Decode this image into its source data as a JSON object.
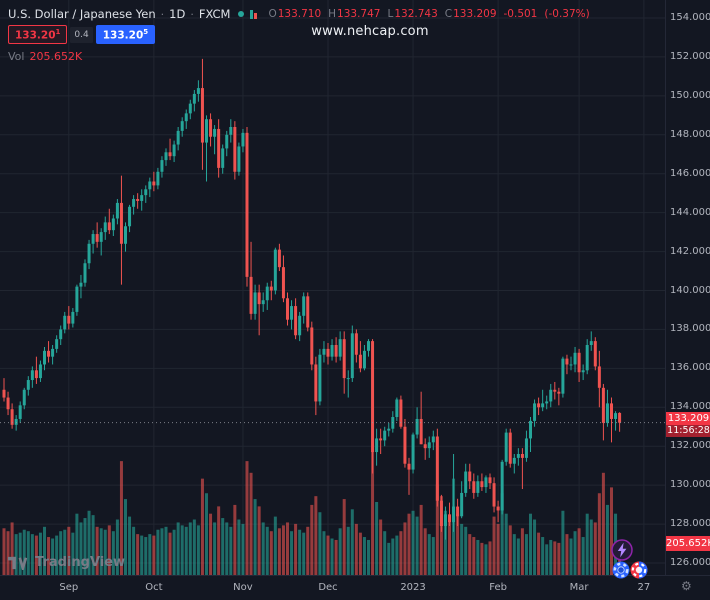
{
  "header": {
    "symbol": "U.S. Dollar / Japanese Yen",
    "separator": "·",
    "timeframe": "1D",
    "exchange": "FXCM",
    "ohlc": {
      "o_label": "O",
      "o": "133.710",
      "h_label": "H",
      "h": "133.747",
      "l_label": "L",
      "l": "132.743",
      "c_label": "C",
      "c": "133.209",
      "change": "-0.501",
      "change_pct": "(-0.37%)"
    },
    "sell_button": {
      "price": "133.20",
      "sup": "1"
    },
    "spread": "0.4",
    "buy_button": {
      "price": "133.20",
      "sup": "5"
    },
    "volume": {
      "label": "Vol",
      "value": "205.652K"
    }
  },
  "watermark": "www.nehcap.com",
  "price_label": {
    "price": "133.209",
    "countdown": "11:56:28"
  },
  "volume_badge": "205.652K",
  "logo": {
    "text": "TradingView"
  },
  "colors": {
    "background": "#131722",
    "up": "#26a69a",
    "down": "#ef5350",
    "grid": "#212631",
    "last_price_line": "#9598a1",
    "badge_red": "#f23645",
    "countdown_red": "#a3212f",
    "buy_blue": "#2962ff",
    "text_primary": "#dde1e7",
    "text_muted": "#787b86",
    "axis_text": "#b2b5be",
    "value_red": "#f23645"
  },
  "chart_data": {
    "type": "candlestick",
    "title": "U.S. Dollar / Japanese Yen",
    "symbol": "USDJPY",
    "interval": "1D",
    "exchange": "FXCM",
    "last_ohlc": {
      "open": 133.71,
      "high": 133.747,
      "low": 132.743,
      "close": 133.209,
      "change": -0.501,
      "change_pct": -0.37
    },
    "last_volume": "205.652K",
    "countdown": "11:56:28",
    "grid": true,
    "y_axis": {
      "min": 126,
      "max": 154,
      "step": 2,
      "side": "right"
    },
    "price_ticks": [
      "154.000",
      "152.000",
      "150.000",
      "148.000",
      "146.000",
      "144.000",
      "142.000",
      "140.000",
      "138.000",
      "136.000",
      "134.000",
      "132.000",
      "130.000",
      "128.000",
      "126.000"
    ],
    "time_labels": [
      {
        "text": "Sep",
        "i": 16
      },
      {
        "text": "Oct",
        "i": 37
      },
      {
        "text": "Nov",
        "i": 59
      },
      {
        "text": "Dec",
        "i": 80
      },
      {
        "text": "2023",
        "i": 101
      },
      {
        "text": "Feb",
        "i": 122
      },
      {
        "text": "Mar",
        "i": 142
      },
      {
        "text": "27",
        "i": 158
      }
    ],
    "columns": [
      "open",
      "high",
      "low",
      "close",
      "volume_k"
    ],
    "candles": [
      [
        134.9,
        135.5,
        134.3,
        134.5,
        320
      ],
      [
        134.5,
        134.8,
        133.6,
        133.9,
        300
      ],
      [
        133.9,
        134.2,
        132.9,
        133.1,
        360
      ],
      [
        133.1,
        133.6,
        132.8,
        133.4,
        280
      ],
      [
        133.4,
        134.3,
        133.2,
        134.1,
        290
      ],
      [
        134.1,
        135.0,
        133.9,
        134.9,
        310
      ],
      [
        134.9,
        135.6,
        134.6,
        135.4,
        300
      ],
      [
        135.4,
        136.1,
        135.0,
        135.9,
        280
      ],
      [
        135.9,
        136.6,
        135.2,
        135.5,
        270
      ],
      [
        135.5,
        136.4,
        135.3,
        136.2,
        290
      ],
      [
        136.2,
        137.1,
        135.9,
        136.9,
        330
      ],
      [
        136.9,
        137.4,
        136.3,
        136.6,
        260
      ],
      [
        136.6,
        137.2,
        136.2,
        137.0,
        250
      ],
      [
        137.0,
        137.7,
        136.8,
        137.5,
        270
      ],
      [
        137.5,
        138.2,
        137.2,
        138.0,
        300
      ],
      [
        138.0,
        138.9,
        137.8,
        138.7,
        310
      ],
      [
        138.7,
        139.2,
        138.0,
        138.3,
        330
      ],
      [
        138.3,
        139.1,
        138.1,
        138.9,
        290
      ],
      [
        138.9,
        140.3,
        138.7,
        140.2,
        420
      ],
      [
        140.2,
        140.8,
        139.6,
        140.4,
        360
      ],
      [
        140.4,
        141.6,
        140.2,
        141.4,
        390
      ],
      [
        141.4,
        142.6,
        141.1,
        142.4,
        440
      ],
      [
        142.4,
        143.1,
        141.9,
        142.9,
        410
      ],
      [
        142.9,
        143.5,
        142.2,
        142.5,
        330
      ],
      [
        142.5,
        143.2,
        141.8,
        143.0,
        320
      ],
      [
        143.0,
        143.8,
        142.6,
        143.5,
        310
      ],
      [
        143.5,
        144.2,
        142.9,
        143.1,
        340
      ],
      [
        143.1,
        143.9,
        142.8,
        143.7,
        300
      ],
      [
        143.7,
        144.7,
        143.4,
        144.5,
        380
      ],
      [
        144.5,
        145.9,
        140.3,
        142.4,
        780
      ],
      [
        142.4,
        143.5,
        142.0,
        143.3,
        520
      ],
      [
        143.3,
        144.4,
        143.0,
        144.3,
        400
      ],
      [
        144.3,
        144.9,
        143.9,
        144.7,
        330
      ],
      [
        144.7,
        145.0,
        144.2,
        144.6,
        280
      ],
      [
        144.6,
        145.2,
        144.1,
        144.9,
        270
      ],
      [
        144.9,
        145.4,
        144.5,
        145.2,
        260
      ],
      [
        145.2,
        145.8,
        144.8,
        145.6,
        280
      ],
      [
        145.6,
        146.1,
        145.1,
        145.4,
        270
      ],
      [
        145.4,
        146.3,
        145.2,
        146.1,
        310
      ],
      [
        146.1,
        146.9,
        145.8,
        146.7,
        320
      ],
      [
        146.7,
        147.3,
        146.4,
        147.1,
        330
      ],
      [
        147.1,
        147.8,
        146.7,
        146.9,
        290
      ],
      [
        146.9,
        147.7,
        146.6,
        147.5,
        310
      ],
      [
        147.5,
        148.4,
        147.2,
        148.2,
        360
      ],
      [
        148.2,
        148.9,
        147.9,
        148.7,
        340
      ],
      [
        148.7,
        149.3,
        148.3,
        149.1,
        330
      ],
      [
        149.1,
        149.8,
        148.8,
        149.6,
        360
      ],
      [
        149.6,
        150.3,
        149.2,
        150.1,
        380
      ],
      [
        150.1,
        150.8,
        149.7,
        150.4,
        340
      ],
      [
        150.4,
        151.9,
        146.2,
        147.6,
        660
      ],
      [
        147.6,
        149.0,
        145.6,
        148.8,
        560
      ],
      [
        148.8,
        149.1,
        147.4,
        147.9,
        420
      ],
      [
        147.9,
        148.5,
        147.0,
        148.3,
        360
      ],
      [
        148.3,
        148.8,
        145.8,
        146.3,
        470
      ],
      [
        146.3,
        147.5,
        146.0,
        147.3,
        390
      ],
      [
        147.3,
        148.2,
        146.9,
        148.0,
        360
      ],
      [
        148.0,
        148.8,
        147.6,
        148.4,
        330
      ],
      [
        148.4,
        148.7,
        145.7,
        146.1,
        480
      ],
      [
        146.1,
        147.6,
        145.9,
        147.4,
        380
      ],
      [
        147.4,
        148.3,
        147.1,
        148.1,
        350
      ],
      [
        148.1,
        148.4,
        140.2,
        140.7,
        780
      ],
      [
        140.7,
        142.5,
        138.5,
        138.8,
        700
      ],
      [
        138.8,
        140.3,
        138.5,
        139.9,
        520
      ],
      [
        139.9,
        140.3,
        137.7,
        139.3,
        470
      ],
      [
        139.3,
        139.9,
        138.9,
        139.5,
        360
      ],
      [
        139.5,
        140.4,
        139.0,
        140.2,
        330
      ],
      [
        140.2,
        140.5,
        139.5,
        140.0,
        300
      ],
      [
        140.0,
        142.2,
        139.8,
        142.1,
        400
      ],
      [
        142.1,
        142.4,
        141.0,
        141.2,
        320
      ],
      [
        141.2,
        141.8,
        139.4,
        139.6,
        340
      ],
      [
        139.6,
        139.9,
        138.2,
        138.5,
        360
      ],
      [
        138.5,
        139.5,
        138.0,
        139.2,
        300
      ],
      [
        139.2,
        139.6,
        137.5,
        137.7,
        350
      ],
      [
        137.7,
        138.9,
        137.4,
        138.7,
        310
      ],
      [
        138.7,
        139.9,
        138.3,
        139.7,
        290
      ],
      [
        139.7,
        139.9,
        137.9,
        138.1,
        330
      ],
      [
        138.1,
        138.4,
        135.9,
        136.2,
        480
      ],
      [
        136.2,
        136.6,
        133.6,
        134.3,
        540
      ],
      [
        134.3,
        137.0,
        134.1,
        136.7,
        430
      ],
      [
        136.7,
        137.4,
        136.3,
        137.0,
        300
      ],
      [
        137.0,
        137.3,
        136.2,
        136.6,
        270
      ],
      [
        136.6,
        137.5,
        136.4,
        137.2,
        250
      ],
      [
        137.2,
        137.6,
        136.3,
        136.6,
        240
      ],
      [
        136.6,
        137.9,
        136.4,
        137.5,
        320
      ],
      [
        137.5,
        137.9,
        134.7,
        135.5,
        520
      ],
      [
        135.5,
        135.9,
        134.5,
        135.5,
        330
      ],
      [
        135.5,
        138.2,
        135.3,
        137.8,
        450
      ],
      [
        137.8,
        138.0,
        136.3,
        136.7,
        350
      ],
      [
        136.7,
        137.4,
        135.8,
        136.0,
        290
      ],
      [
        136.0,
        137.2,
        135.9,
        136.9,
        260
      ],
      [
        136.9,
        137.5,
        136.6,
        137.4,
        240
      ],
      [
        137.4,
        137.5,
        130.6,
        131.7,
        850
      ],
      [
        131.7,
        132.9,
        131.0,
        132.4,
        500
      ],
      [
        132.4,
        132.9,
        131.6,
        132.3,
        380
      ],
      [
        132.3,
        133.0,
        132.0,
        132.8,
        300
      ],
      [
        132.8,
        133.2,
        132.5,
        132.9,
        220
      ],
      [
        132.9,
        133.8,
        132.7,
        133.5,
        250
      ],
      [
        133.5,
        134.5,
        133.3,
        134.4,
        270
      ],
      [
        134.4,
        134.6,
        132.9,
        133.0,
        300
      ],
      [
        133.0,
        133.4,
        130.9,
        131.1,
        360
      ],
      [
        131.1,
        131.4,
        129.5,
        130.8,
        420
      ],
      [
        130.8,
        132.7,
        130.6,
        132.6,
        440
      ],
      [
        132.6,
        134.0,
        132.4,
        133.4,
        400
      ],
      [
        133.4,
        134.8,
        132.1,
        132.1,
        480
      ],
      [
        132.1,
        132.4,
        131.3,
        131.9,
        320
      ],
      [
        131.9,
        132.5,
        131.4,
        132.2,
        280
      ],
      [
        132.2,
        132.8,
        131.8,
        132.5,
        260
      ],
      [
        132.5,
        132.9,
        128.9,
        129.2,
        620
      ],
      [
        129.2,
        129.5,
        127.6,
        127.9,
        540
      ],
      [
        127.9,
        128.9,
        127.2,
        128.5,
        440
      ],
      [
        128.5,
        129.1,
        127.9,
        128.1,
        380
      ],
      [
        128.1,
        131.6,
        127.6,
        128.9,
        660
      ],
      [
        128.9,
        129.3,
        127.9,
        128.4,
        420
      ],
      [
        128.4,
        130.2,
        128.3,
        129.6,
        350
      ],
      [
        129.6,
        131.1,
        129.4,
        130.7,
        330
      ],
      [
        130.7,
        131.1,
        129.8,
        130.2,
        280
      ],
      [
        130.2,
        130.6,
        129.3,
        129.6,
        260
      ],
      [
        129.6,
        130.5,
        129.4,
        130.2,
        240
      ],
      [
        130.2,
        130.6,
        129.7,
        129.9,
        220
      ],
      [
        129.9,
        130.5,
        129.6,
        130.4,
        210
      ],
      [
        130.4,
        130.6,
        129.8,
        130.1,
        230
      ],
      [
        130.1,
        130.4,
        128.6,
        128.9,
        400
      ],
      [
        128.9,
        129.2,
        128.1,
        128.7,
        350
      ],
      [
        128.7,
        131.3,
        128.5,
        131.2,
        560
      ],
      [
        131.2,
        132.9,
        131.0,
        132.7,
        420
      ],
      [
        132.7,
        132.9,
        130.9,
        131.1,
        340
      ],
      [
        131.1,
        131.6,
        130.6,
        131.4,
        280
      ],
      [
        131.4,
        131.9,
        131.0,
        131.6,
        250
      ],
      [
        131.6,
        131.9,
        129.8,
        131.4,
        320
      ],
      [
        131.4,
        132.8,
        131.2,
        132.4,
        280
      ],
      [
        132.4,
        133.5,
        131.7,
        133.3,
        420
      ],
      [
        133.3,
        134.4,
        133.0,
        134.2,
        380
      ],
      [
        134.2,
        134.5,
        133.6,
        134.0,
        290
      ],
      [
        134.0,
        134.9,
        133.8,
        134.2,
        260
      ],
      [
        134.2,
        134.6,
        133.9,
        134.3,
        210
      ],
      [
        134.3,
        135.2,
        134.0,
        134.9,
        240
      ],
      [
        134.9,
        135.3,
        134.4,
        134.8,
        230
      ],
      [
        134.8,
        135.0,
        134.1,
        134.7,
        220
      ],
      [
        134.7,
        136.6,
        134.5,
        136.5,
        440
      ],
      [
        136.5,
        136.7,
        135.7,
        136.2,
        280
      ],
      [
        136.2,
        136.6,
        135.9,
        136.2,
        250
      ],
      [
        136.2,
        137.1,
        135.8,
        136.8,
        300
      ],
      [
        136.8,
        137.0,
        135.3,
        135.8,
        320
      ],
      [
        135.8,
        136.2,
        135.4,
        135.9,
        260
      ],
      [
        135.9,
        137.5,
        135.7,
        137.2,
        420
      ],
      [
        137.2,
        137.9,
        136.9,
        137.4,
        380
      ],
      [
        137.4,
        137.6,
        135.9,
        136.1,
        360
      ],
      [
        136.1,
        136.9,
        134.0,
        135.0,
        560
      ],
      [
        135.0,
        135.2,
        132.3,
        133.2,
        700
      ],
      [
        133.2,
        134.9,
        133.0,
        134.2,
        480
      ],
      [
        134.2,
        134.5,
        132.2,
        133.4,
        600
      ],
      [
        133.4,
        133.8,
        132.8,
        133.7,
        420
      ],
      [
        133.71,
        133.747,
        132.743,
        133.209,
        205.652
      ]
    ]
  }
}
